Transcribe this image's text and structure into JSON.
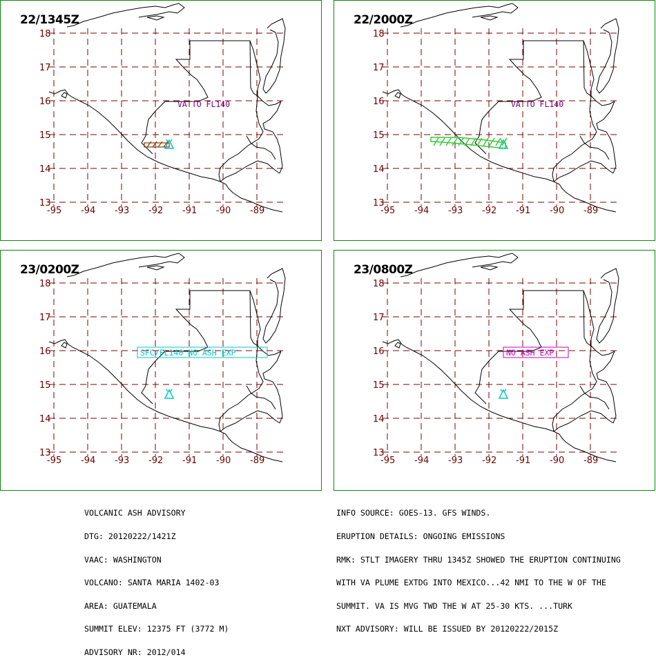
{
  "panels": [
    {
      "time": "22/1345Z",
      "va_label": "VA TO FL140",
      "va_color": "#800080",
      "cloud": "small",
      "cloud_color": "#8b4513"
    },
    {
      "time": "22/2000Z",
      "va_label": "VA TO FL140",
      "va_color": "#800080",
      "cloud": "long",
      "cloud_color": "#33cc33"
    },
    {
      "time": "23/0200Z",
      "va_label": "SFC/FL140 NO ASH EXP",
      "va_color": "#00c8c8",
      "cloud": "none",
      "cloud_color": ""
    },
    {
      "time": "23/0800Z",
      "va_label": "NO ASH EXP",
      "va_color": "#c000c0",
      "cloud": "none",
      "cloud_color": ""
    }
  ],
  "axes": {
    "lat_labels": [
      "18",
      "17",
      "16",
      "15",
      "14",
      "13"
    ],
    "lon_labels": [
      "-95",
      "-94",
      "-93",
      "-92",
      "-91",
      "-90",
      "-89"
    ]
  },
  "advisory_left": [
    "VOLCANIC ASH ADVISORY",
    "DTG: 20120222/1421Z",
    "VAAC: WASHINGTON",
    "VOLCANO: SANTA MARIA 1402-03",
    "AREA: GUATEMALA",
    "SUMMIT ELEV: 12375 FT (3772 M)",
    "ADVISORY NR: 2012/014"
  ],
  "advisory_right": [
    "INFO SOURCE: GOES-13. GFS WINDS.",
    "ERUPTION DETAILS: ONGOING EMISSIONS",
    "RMK: STLT IMAGERY THRU 1345Z SHOWED THE ERUPTION CONTINUING",
    "WITH VA PLUME EXTDG INTO MEXICO...42 NMI TO THE W OF THE",
    "SUMMIT. VA IS MVG TWD THE W AT 25-30 KTS. ...TURK",
    "NXT ADVISORY: WILL BE ISSUED BY 20120222/2015Z"
  ],
  "colors": {
    "frame": "#0a8a0a",
    "grid": "#7a0000",
    "labels": "#6b0000",
    "volcano": "#00c8c8"
  }
}
